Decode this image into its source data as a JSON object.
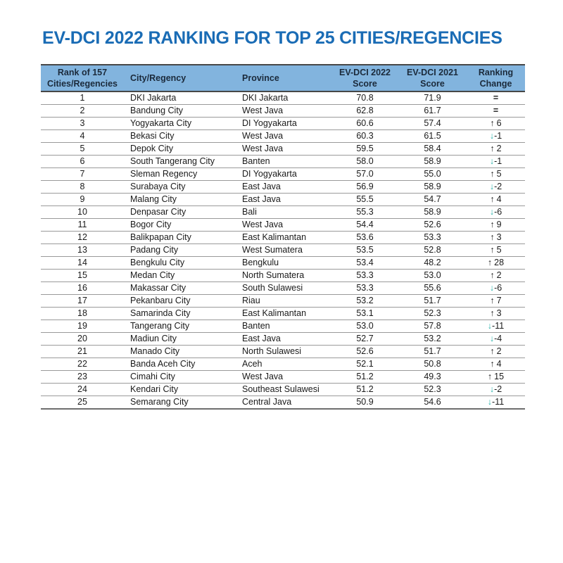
{
  "chart_data": {
    "type": "table",
    "title": "EV-DCI 2022 RANKING FOR TOP 25 CITIES/REGENCIES",
    "columns": [
      "Rank of 157 Cities/Regencies",
      "City/Regency",
      "Province",
      "EV-DCI 2022 Score",
      "EV-DCI 2021 Score",
      "Ranking Change"
    ],
    "rows": [
      {
        "rank": "1",
        "city": "DKI Jakarta",
        "province": "DKI Jakarta",
        "score_2022": "70.8",
        "score_2021": "71.9",
        "change": {
          "dir": "same",
          "value": "="
        }
      },
      {
        "rank": "2",
        "city": "Bandung City",
        "province": "West Java",
        "score_2022": "62.8",
        "score_2021": "61.7",
        "change": {
          "dir": "same",
          "value": "="
        }
      },
      {
        "rank": "3",
        "city": "Yogyakarta City",
        "province": "DI Yogyakarta",
        "score_2022": "60.6",
        "score_2021": "57.4",
        "change": {
          "dir": "up",
          "value": "6"
        }
      },
      {
        "rank": "4",
        "city": "Bekasi City",
        "province": "West Java",
        "score_2022": "60.3",
        "score_2021": "61.5",
        "change": {
          "dir": "down",
          "value": "-1"
        }
      },
      {
        "rank": "5",
        "city": "Depok City",
        "province": "West Java",
        "score_2022": "59.5",
        "score_2021": "58.4",
        "change": {
          "dir": "up",
          "value": "2"
        }
      },
      {
        "rank": "6",
        "city": "South Tangerang City",
        "province": "Banten",
        "score_2022": "58.0",
        "score_2021": "58.9",
        "change": {
          "dir": "down",
          "value": "-1"
        }
      },
      {
        "rank": "7",
        "city": "Sleman Regency",
        "province": "DI Yogyakarta",
        "score_2022": "57.0",
        "score_2021": "55.0",
        "change": {
          "dir": "up",
          "value": "5"
        }
      },
      {
        "rank": "8",
        "city": "Surabaya City",
        "province": "East Java",
        "score_2022": "56.9",
        "score_2021": "58.9",
        "change": {
          "dir": "down",
          "value": "-2"
        }
      },
      {
        "rank": "9",
        "city": "Malang City",
        "province": "East Java",
        "score_2022": "55.5",
        "score_2021": "54.7",
        "change": {
          "dir": "up",
          "value": "4"
        }
      },
      {
        "rank": "10",
        "city": "Denpasar City",
        "province": "Bali",
        "score_2022": "55.3",
        "score_2021": "58.9",
        "change": {
          "dir": "down",
          "value": "-6"
        }
      },
      {
        "rank": "11",
        "city": "Bogor City",
        "province": "West Java",
        "score_2022": "54.4",
        "score_2021": "52.6",
        "change": {
          "dir": "up",
          "value": "9"
        }
      },
      {
        "rank": "12",
        "city": "Balikpapan City",
        "province": "East Kalimantan",
        "score_2022": "53.6",
        "score_2021": "53.3",
        "change": {
          "dir": "up",
          "value": "3"
        }
      },
      {
        "rank": "13",
        "city": "Padang City",
        "province": "West Sumatera",
        "score_2022": "53.5",
        "score_2021": "52.8",
        "change": {
          "dir": "up",
          "value": "5"
        }
      },
      {
        "rank": "14",
        "city": "Bengkulu City",
        "province": "Bengkulu",
        "score_2022": "53.4",
        "score_2021": "48.2",
        "change": {
          "dir": "up",
          "value": "28"
        }
      },
      {
        "rank": "15",
        "city": "Medan City",
        "province": "North Sumatera",
        "score_2022": "53.3",
        "score_2021": "53.0",
        "change": {
          "dir": "up",
          "value": "2"
        }
      },
      {
        "rank": "16",
        "city": "Makassar City",
        "province": "South Sulawesi",
        "score_2022": "53.3",
        "score_2021": "55.6",
        "change": {
          "dir": "down",
          "value": "-6"
        }
      },
      {
        "rank": "17",
        "city": "Pekanbaru City",
        "province": "Riau",
        "score_2022": "53.2",
        "score_2021": "51.7",
        "change": {
          "dir": "up",
          "value": "7"
        }
      },
      {
        "rank": "18",
        "city": "Samarinda City",
        "province": "East Kalimantan",
        "score_2022": "53.1",
        "score_2021": "52.3",
        "change": {
          "dir": "up",
          "value": "3"
        }
      },
      {
        "rank": "19",
        "city": "Tangerang City",
        "province": "Banten",
        "score_2022": "53.0",
        "score_2021": "57.8",
        "change": {
          "dir": "down",
          "value": "-11"
        }
      },
      {
        "rank": "20",
        "city": "Madiun City",
        "province": "East Java",
        "score_2022": "52.7",
        "score_2021": "53.2",
        "change": {
          "dir": "down",
          "value": "-4"
        }
      },
      {
        "rank": "21",
        "city": "Manado City",
        "province": "North Sulawesi",
        "score_2022": "52.6",
        "score_2021": "51.7",
        "change": {
          "dir": "up",
          "value": "2"
        }
      },
      {
        "rank": "22",
        "city": "Banda Aceh City",
        "province": "Aceh",
        "score_2022": "52.1",
        "score_2021": "50.8",
        "change": {
          "dir": "up",
          "value": "4"
        }
      },
      {
        "rank": "23",
        "city": "Cimahi City",
        "province": "West Java",
        "score_2022": "51.2",
        "score_2021": "49.3",
        "change": {
          "dir": "up",
          "value": "15"
        }
      },
      {
        "rank": "24",
        "city": "Kendari City",
        "province": "Southeast Sulawesi",
        "score_2022": "51.2",
        "score_2021": "52.3",
        "change": {
          "dir": "down",
          "value": "-2"
        }
      },
      {
        "rank": "25",
        "city": "Semarang City",
        "province": "Central Java",
        "score_2022": "50.9",
        "score_2021": "54.6",
        "change": {
          "dir": "down",
          "value": "-11"
        }
      }
    ]
  },
  "icons": {
    "up_arrow": "↑",
    "down_arrow": "↓",
    "equal": "="
  },
  "colors": {
    "title": "#1a6cb5",
    "header_bg": "#82b4de",
    "header_text": "#1b2a3b",
    "up_arrow": "#1a1a1a",
    "down_arrow": "#2cb4ac"
  }
}
